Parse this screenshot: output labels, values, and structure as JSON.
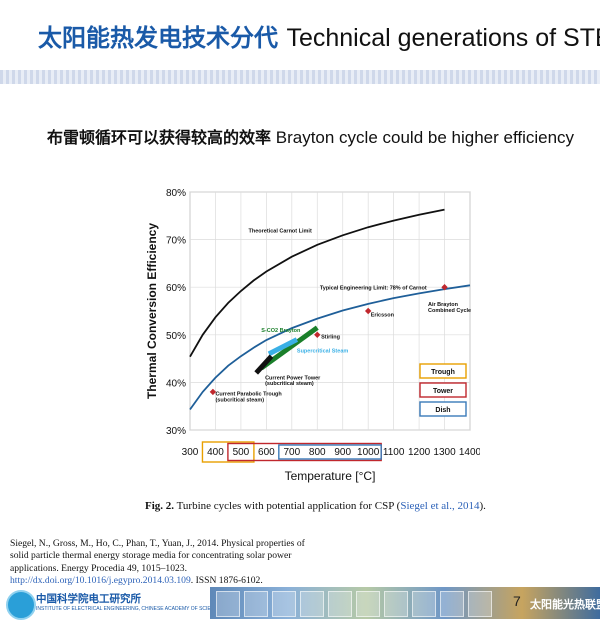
{
  "slide": {
    "title_cn": "太阳能热发电技术分代",
    "title_en": "Technical generations of STE",
    "subtitle_cn": "布雷顿循环可以获得较高的效率",
    "subtitle_en": "Brayton cycle  could be higher efficiency",
    "caption_fig": "Fig. 2.",
    "caption_text": "Turbine cycles with potential application for CSP (",
    "caption_cite": "Siegel et al., 2014",
    "caption_end": ").",
    "reference_text": "Siegel, N., Gross, M., Ho, C., Phan, T., Yuan, J., 2014. Physical properties of solid particle thermal energy storage media for concentrating solar power applications. Energy Procedia 49, 1015–1023.",
    "reference_link": "http://dx.doi.org/10.1016/j.egypro.2014.03.109",
    "reference_issn": ". ISSN 1876-6102.",
    "page_number": "7",
    "footer_org_cn": "中国科学院电工研究所",
    "footer_org_en": "INSTITUTE OF ELECTRICAL ENGINEERING, CHINESE ACADEMY OF SCIENCES",
    "footer_alliance": "太阳能光热联盟"
  },
  "chart_data": {
    "type": "line",
    "xlabel": "Temperature [°C]",
    "ylabel": "Thermal Conversion Efficiency",
    "xlim": [
      300,
      1400
    ],
    "ylim": [
      30,
      80
    ],
    "xticks": [
      300,
      400,
      500,
      600,
      700,
      800,
      900,
      1000,
      1100,
      1200,
      1300,
      1400
    ],
    "ytick_labels": [
      "30%",
      "40%",
      "50%",
      "60%",
      "70%",
      "80%"
    ],
    "yticks": [
      30,
      40,
      50,
      60,
      70,
      80
    ],
    "grid": true,
    "series": [
      {
        "name": "Theoretical Carnot Limit",
        "color": "#111111",
        "x": [
          300,
          350,
          400,
          450,
          500,
          550,
          600,
          700,
          800,
          900,
          1000,
          1100,
          1200,
          1300
        ],
        "y": [
          45.4,
          50.0,
          53.7,
          56.7,
          59.2,
          61.4,
          63.3,
          66.4,
          68.9,
          70.9,
          72.6,
          74.0,
          75.2,
          76.3
        ]
      },
      {
        "name": "Typical Engineering Limit: 78% of Carnot",
        "color": "#1f5f99",
        "x": [
          300,
          350,
          400,
          450,
          500,
          550,
          600,
          700,
          800,
          900,
          1000,
          1100,
          1200,
          1300,
          1400
        ],
        "y": [
          34.3,
          38.0,
          41.0,
          43.5,
          45.5,
          47.3,
          48.9,
          51.4,
          53.4,
          55.1,
          56.5,
          57.7,
          58.7,
          59.6,
          60.4
        ]
      }
    ],
    "points": [
      {
        "label": "Current Parabolic Trough (subcritical steam)",
        "x": 390,
        "y": 38,
        "color": "#c0272d"
      },
      {
        "label": "Stirling",
        "x": 800,
        "y": 50,
        "color": "#c0272d"
      },
      {
        "label": "Ericsson",
        "x": 1000,
        "y": 55,
        "color": "#c0272d"
      },
      {
        "label": "Air Brayton Combined Cycle",
        "x": 1300,
        "y": 60,
        "color": "#c0272d"
      }
    ],
    "bands": [
      {
        "label": "S-CO2 Brayton",
        "x": [
          580,
          800
        ],
        "y": [
          43,
          51.5
        ],
        "color": "#1a7f2a"
      },
      {
        "label": "Supercritical Steam",
        "x": [
          610,
          720
        ],
        "y": [
          46,
          49
        ],
        "color": "#3ab0e6"
      },
      {
        "label": "Current Power Tower (subcritical steam)",
        "x": [
          560,
          620
        ],
        "y": [
          42,
          45.5
        ],
        "color": "#111111"
      }
    ],
    "annotations": [
      {
        "text": "Theoretical Carnot Limit",
        "x": 530,
        "y": 71.5
      },
      {
        "text": "Typical Engineering Limit: 78% of Carnot",
        "x": 810,
        "y": 59.5
      },
      {
        "text": "S-CO2 Brayton",
        "x": 580,
        "y": 50.6
      },
      {
        "text": "Stirling",
        "x": 815,
        "y": 49.2
      },
      {
        "text": "Supercritical Steam",
        "x": 720,
        "y": 46.3
      },
      {
        "text": "Current Power Tower",
        "x": 595,
        "y": 40.6
      },
      {
        "text": "(subcritical steam)",
        "x": 595,
        "y": 39.5
      },
      {
        "text": "Ericsson",
        "x": 1010,
        "y": 53.8
      },
      {
        "text": "Air Brayton",
        "x": 1235,
        "y": 56.0
      },
      {
        "text": "Combined Cycle",
        "x": 1235,
        "y": 54.8
      },
      {
        "text": "Current Parabolic Trough",
        "x": 400,
        "y": 37.2
      },
      {
        "text": "(subcritical steam)",
        "x": 400,
        "y": 36.0
      }
    ],
    "legend": {
      "placement": "bottom-right",
      "items": [
        {
          "label": "Trough",
          "color": "#e8a000"
        },
        {
          "label": "Tower",
          "color": "#c0272d"
        },
        {
          "label": "Dish",
          "color": "#3a7ab8"
        }
      ]
    },
    "tick_highlights": [
      {
        "group": "Trough",
        "x": [
          400,
          500
        ],
        "color": "#e8a000"
      },
      {
        "group": "Tower",
        "x": [
          500,
          1000
        ],
        "color": "#c0272d"
      },
      {
        "group": "Dish",
        "x": [
          700,
          1000
        ],
        "color": "#3a7ab8"
      }
    ]
  }
}
